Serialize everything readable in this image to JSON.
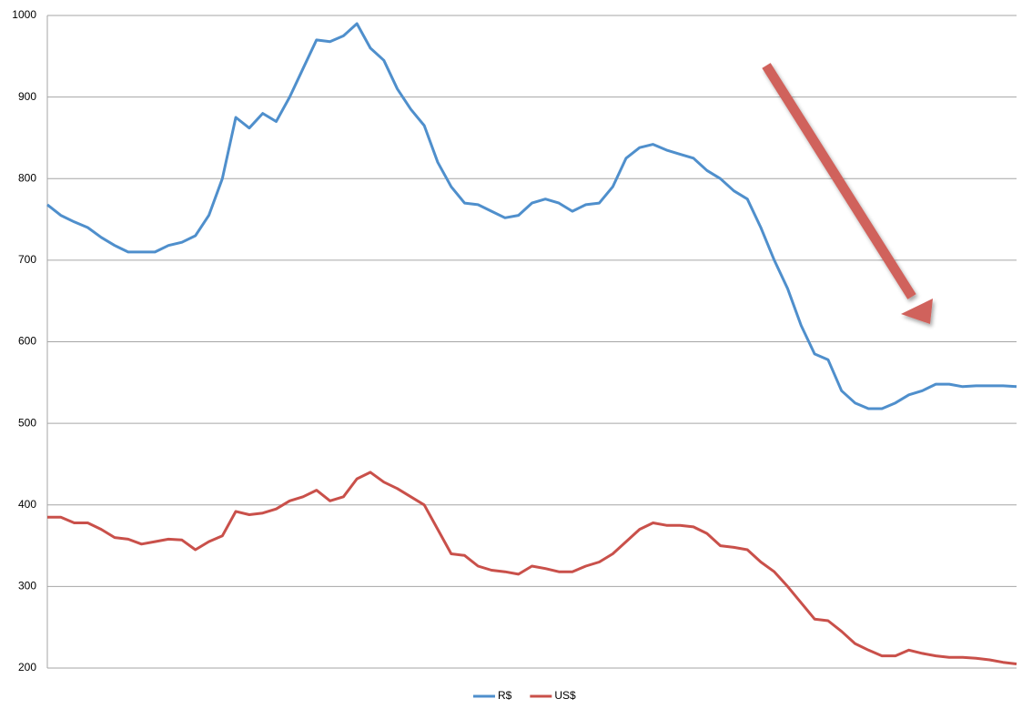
{
  "chart_data": {
    "type": "line",
    "categories": [
      null,
      null,
      null,
      null,
      null,
      null,
      null,
      null,
      null,
      null,
      null,
      null,
      null,
      null,
      null,
      null,
      null,
      null,
      null,
      null,
      null,
      null,
      null,
      null,
      null,
      null,
      null,
      null,
      null,
      null,
      null,
      null,
      null,
      null,
      null,
      null,
      null,
      null,
      null,
      null,
      null,
      null,
      null,
      null,
      null,
      null,
      null,
      null,
      null,
      null,
      null,
      null,
      null,
      null,
      null,
      null,
      null,
      null,
      null,
      null,
      null,
      null,
      null,
      null,
      null,
      null,
      null,
      null,
      null,
      null,
      null,
      null,
      null
    ],
    "series": [
      {
        "name": "R$",
        "color": "#4f8fcc",
        "values": [
          768,
          755,
          747,
          740,
          728,
          718,
          710,
          710,
          710,
          718,
          722,
          730,
          755,
          800,
          875,
          862,
          880,
          870,
          900,
          935,
          970,
          968,
          975,
          990,
          960,
          945,
          910,
          885,
          865,
          820,
          790,
          770,
          768,
          760,
          752,
          755,
          770,
          775,
          770,
          760,
          768,
          770,
          790,
          825,
          838,
          842,
          835,
          830,
          825,
          810,
          800,
          785,
          775,
          740,
          700,
          665,
          620,
          585,
          578,
          540,
          525,
          518,
          518,
          525,
          535,
          540,
          548,
          548,
          545,
          546,
          546,
          546,
          545
        ]
      },
      {
        "name": "US$",
        "color": "#c9504a",
        "values": [
          385,
          385,
          378,
          378,
          370,
          360,
          358,
          352,
          355,
          358,
          357,
          345,
          355,
          362,
          392,
          388,
          390,
          395,
          405,
          410,
          418,
          405,
          410,
          432,
          440,
          428,
          420,
          410,
          400,
          370,
          340,
          338,
          325,
          320,
          318,
          315,
          325,
          322,
          318,
          318,
          325,
          330,
          340,
          355,
          370,
          378,
          375,
          375,
          373,
          365,
          350,
          348,
          345,
          330,
          318,
          300,
          280,
          260,
          258,
          245,
          230,
          222,
          215,
          215,
          222,
          218,
          215,
          213,
          213,
          212,
          210,
          207,
          205
        ]
      }
    ],
    "ylim": [
      200,
      1000
    ],
    "yticks": [
      200,
      300,
      400,
      500,
      600,
      700,
      800,
      900,
      1000
    ],
    "grid": true,
    "legend": "bottom"
  }
}
